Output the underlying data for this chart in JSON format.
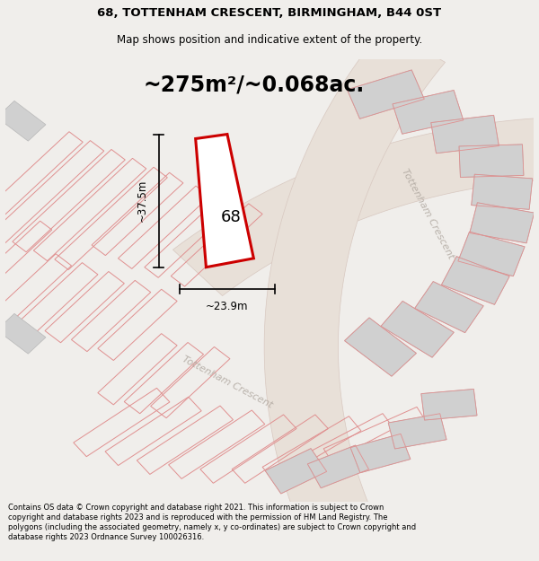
{
  "title_line1": "68, TOTTENHAM CRESCENT, BIRMINGHAM, B44 0ST",
  "title_line2": "Map shows position and indicative extent of the property.",
  "area_text": "~275m²/~0.068ac.",
  "label_number": "68",
  "dim_width": "~23.9m",
  "dim_height": "~37.5m",
  "footer_text": "Contains OS data © Crown copyright and database right 2021. This information is subject to Crown copyright and database rights 2023 and is reproduced with the permission of HM Land Registry. The polygons (including the associated geometry, namely x, y co-ordinates) are subject to Crown copyright and database rights 2023 Ordnance Survey 100026316.",
  "bg_color": "#f0eeeb",
  "plot_outline_color": "#e09090",
  "building_fill": "#d0d0d0",
  "building_edge": "#b8b8b8",
  "highlight_fill": "#ffffff",
  "highlight_edge": "#cc0000",
  "road_fill": "#e8e0d8",
  "road_edge": "#d8c8c0",
  "road_label_color": "#b0a8a0",
  "title_fontsize": 9.5,
  "subtitle_fontsize": 8.5,
  "area_fontsize": 18,
  "footer_fontsize": 6.0
}
